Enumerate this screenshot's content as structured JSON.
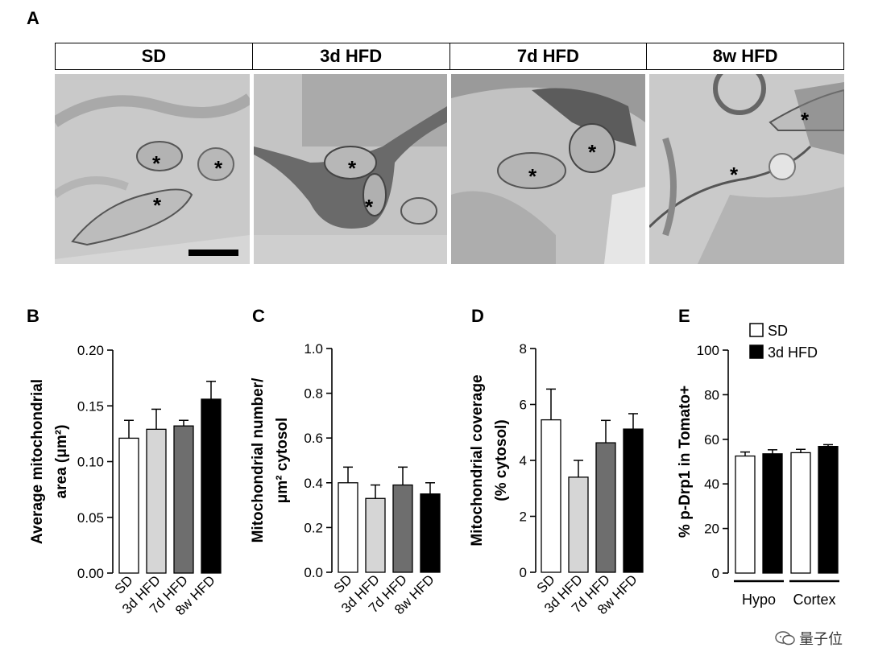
{
  "figure": {
    "panel_labels": {
      "A": "A",
      "B": "B",
      "C": "C",
      "D": "D",
      "E": "E"
    },
    "em_headers": [
      "SD",
      "3d HFD",
      "7d HFD",
      "8w HFD"
    ],
    "asterisk": "*",
    "watermark": "量子位"
  },
  "colors": {
    "SD": "#ffffff",
    "3d HFD": "#d6d6d6",
    "7d HFD": "#6e6e6e",
    "8w HFD": "#000000"
  },
  "chart_data": [
    {
      "id": "B",
      "type": "bar",
      "categories": [
        "SD",
        "3d HFD",
        "7d HFD",
        "8w HFD"
      ],
      "values": [
        0.121,
        0.129,
        0.132,
        0.156
      ],
      "errors": [
        0.016,
        0.018,
        0.005,
        0.016
      ],
      "ylabel": [
        "Average mitochondrial",
        "area (μm²)"
      ],
      "ylim": [
        0,
        0.2
      ],
      "ticks": [
        0.0,
        0.05,
        0.1,
        0.15,
        0.2
      ],
      "tick_labels": [
        "0.00",
        "0.05",
        "0.10",
        "0.15",
        "0.20"
      ],
      "fills": [
        "#ffffff",
        "#d6d6d6",
        "#6e6e6e",
        "#000000"
      ]
    },
    {
      "id": "C",
      "type": "bar",
      "categories": [
        "SD",
        "3d HFD",
        "7d HFD",
        "8w HFD"
      ],
      "values": [
        0.4,
        0.33,
        0.39,
        0.35
      ],
      "errors": [
        0.07,
        0.06,
        0.08,
        0.05
      ],
      "ylabel": [
        "Mitochondrial number/",
        "μm² cytosol"
      ],
      "ylim": [
        0,
        1.0
      ],
      "ticks": [
        0.0,
        0.2,
        0.4,
        0.6,
        0.8,
        1.0
      ],
      "tick_labels": [
        "0.0",
        "0.2",
        "0.4",
        "0.6",
        "0.8",
        "1.0"
      ],
      "fills": [
        "#ffffff",
        "#d6d6d6",
        "#6e6e6e",
        "#000000"
      ]
    },
    {
      "id": "D",
      "type": "bar",
      "categories": [
        "SD",
        "3d HFD",
        "7d HFD",
        "8w HFD"
      ],
      "values": [
        5.45,
        3.4,
        4.63,
        5.12
      ],
      "errors": [
        1.1,
        0.6,
        0.8,
        0.55
      ],
      "ylabel": [
        "Mitochondrial coverage",
        "(% cytosol)"
      ],
      "ylim": [
        0,
        8
      ],
      "ticks": [
        0,
        2,
        4,
        6,
        8
      ],
      "tick_labels": [
        "0",
        "2",
        "4",
        "6",
        "8"
      ],
      "fills": [
        "#ffffff",
        "#d6d6d6",
        "#6e6e6e",
        "#000000"
      ]
    },
    {
      "id": "E",
      "type": "bar",
      "groups": [
        "Hypo",
        "Cortex"
      ],
      "series": [
        {
          "name": "SD",
          "values": [
            52.5,
            54.0
          ],
          "errors": [
            1.8,
            1.5
          ],
          "fill": "#ffffff"
        },
        {
          "name": "3d HFD",
          "values": [
            53.5,
            56.8
          ],
          "errors": [
            1.8,
            0.8
          ],
          "fill": "#000000"
        }
      ],
      "ylabel": [
        "% p-Drp1 in Tomato+"
      ],
      "ylim": [
        0,
        100
      ],
      "ticks": [
        0,
        20,
        40,
        60,
        80,
        100
      ],
      "tick_labels": [
        "0",
        "20",
        "40",
        "60",
        "80",
        "100"
      ],
      "legend_position": "top"
    }
  ]
}
